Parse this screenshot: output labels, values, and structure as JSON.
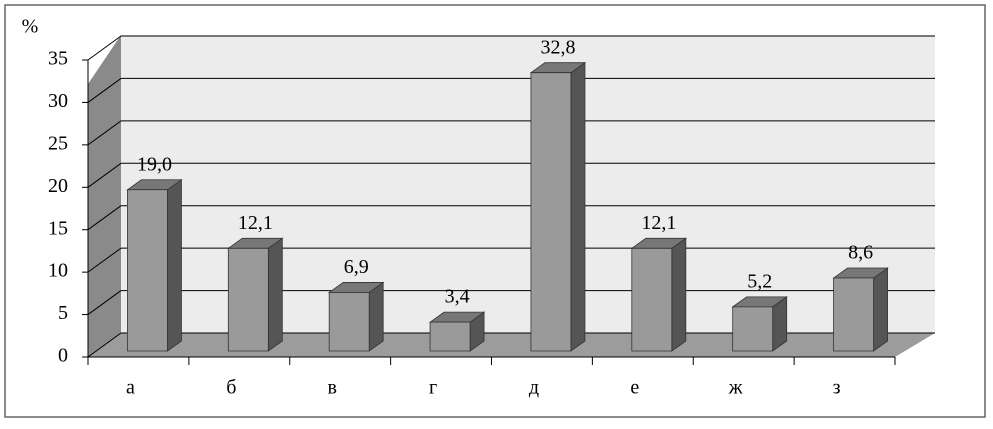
{
  "chart_data": {
    "type": "bar",
    "y_label": "%",
    "categories": [
      "а",
      "б",
      "в",
      "г",
      "д",
      "е",
      "ж",
      "з"
    ],
    "values": [
      19.0,
      12.1,
      6.9,
      3.4,
      32.8,
      12.1,
      5.2,
      8.6
    ],
    "value_labels": [
      "19,0",
      "12,1",
      "6,9",
      "3,4",
      "32,8",
      "12,1",
      "5,2",
      "8,6"
    ],
    "color": "#9a9a9a",
    "ylim": [
      0,
      35
    ],
    "yticks": [
      0,
      5,
      10,
      15,
      20,
      25,
      30,
      35
    ],
    "grid": true
  }
}
